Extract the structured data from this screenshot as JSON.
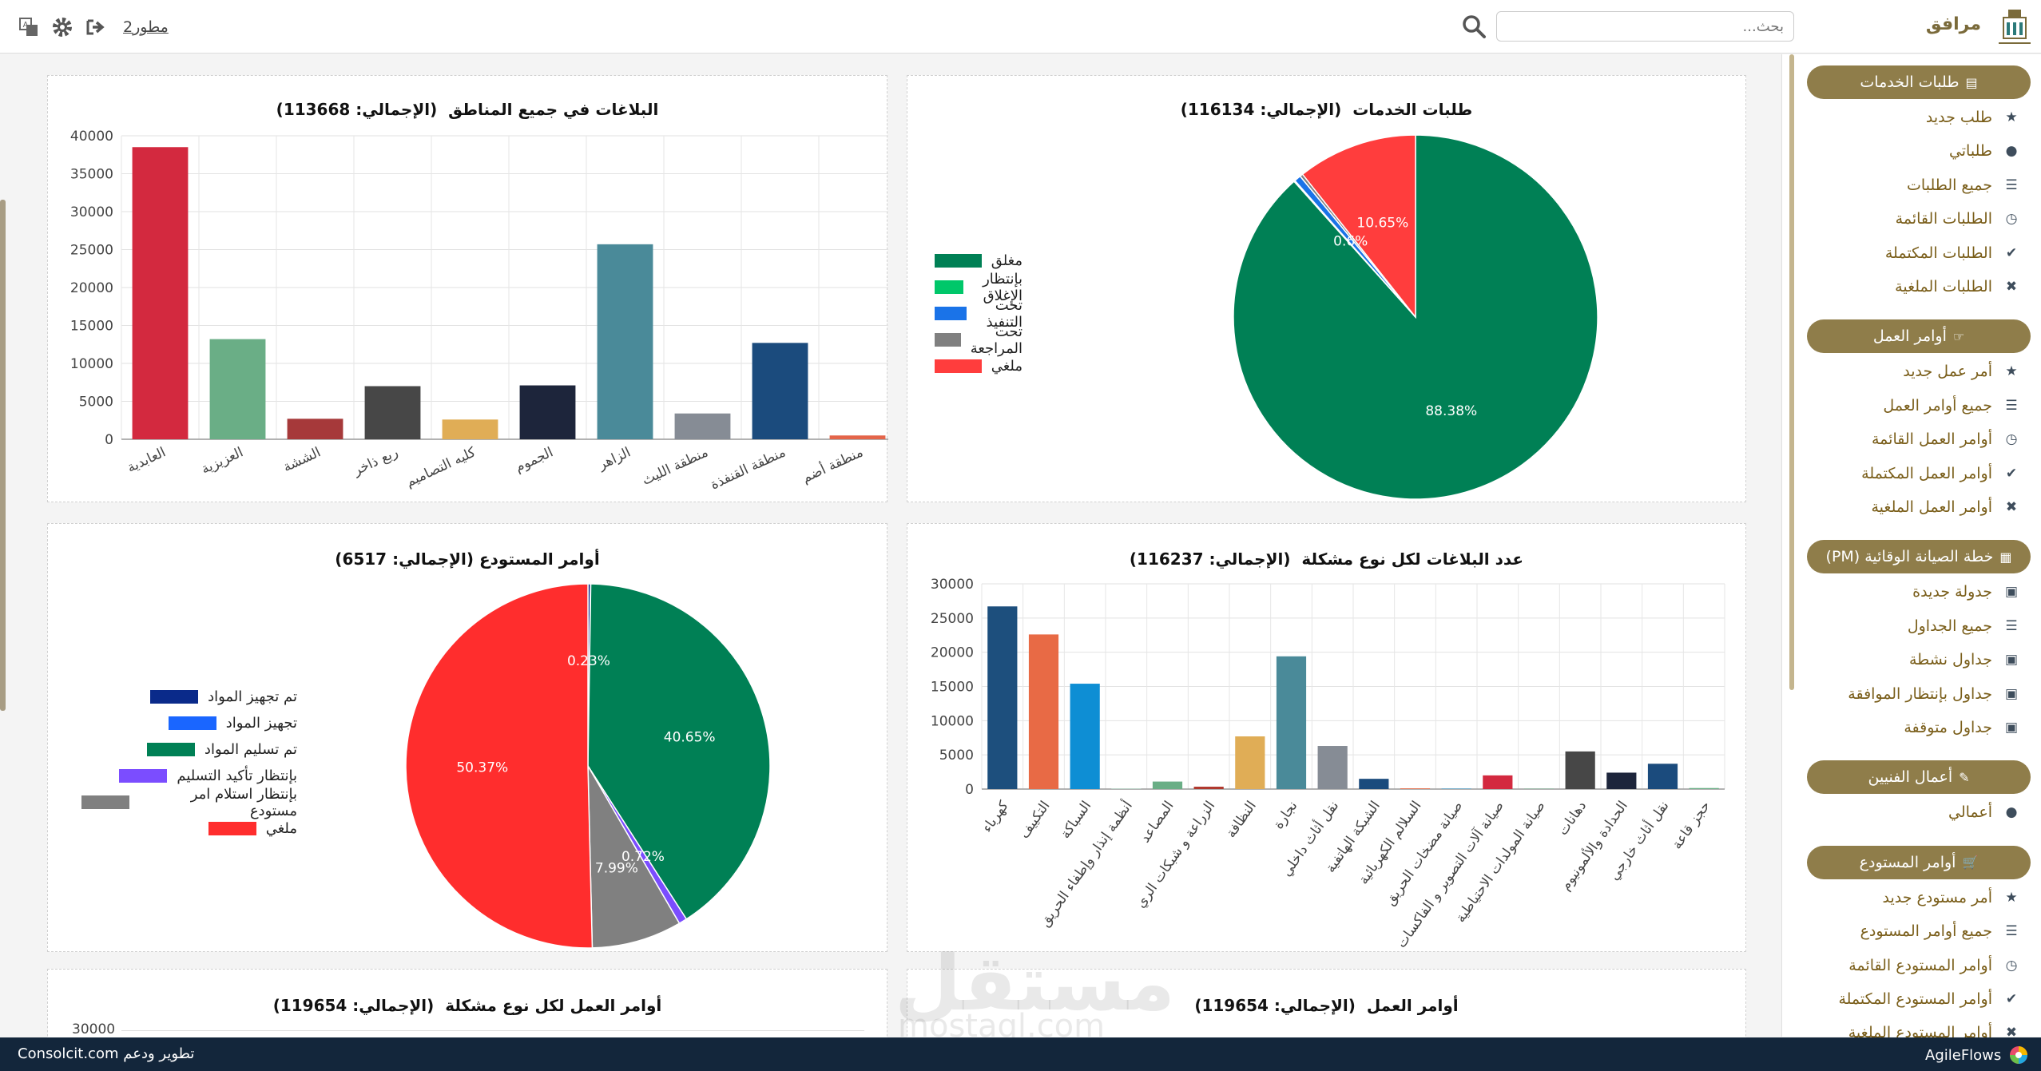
{
  "header": {
    "brand": "مرافق",
    "search_placeholder": "بحث...",
    "user": "مطور2",
    "icons": [
      "translate-icon",
      "gear-icon",
      "logout-icon"
    ]
  },
  "sidebar": {
    "sections": [
      {
        "title": "طلبات الخدمات",
        "icon": "form-icon",
        "items": [
          {
            "label": "طلب جديد",
            "icon": "star-icon"
          },
          {
            "label": "طلباتي",
            "icon": "user-icon"
          },
          {
            "label": "جميع الطلبات",
            "icon": "list-icon"
          },
          {
            "label": "الطلبات القائمة",
            "icon": "clock-icon"
          },
          {
            "label": "الطلبات المكتملة",
            "icon": "check-icon"
          },
          {
            "label": "الطلبات الملغية",
            "icon": "x-icon"
          }
        ]
      },
      {
        "title": "أوامر العمل",
        "icon": "hand-point-icon",
        "items": [
          {
            "label": "أمر عمل جديد",
            "icon": "star-icon"
          },
          {
            "label": "جميع أوامر العمل",
            "icon": "list-icon"
          },
          {
            "label": "أوامر العمل القائمة",
            "icon": "clock-icon"
          },
          {
            "label": "أوامر العمل المكتملة",
            "icon": "check-icon"
          },
          {
            "label": "أوامر العمل الملغية",
            "icon": "x-icon"
          }
        ]
      },
      {
        "title": "خطة الصيانة الوقائية (PM)",
        "icon": "calendar-icon",
        "items": [
          {
            "label": "جدولة جديدة",
            "icon": "calendar-plus-icon"
          },
          {
            "label": "جميع الجداول",
            "icon": "list-icon"
          },
          {
            "label": "جداول نشطة",
            "icon": "calendar-check-icon"
          },
          {
            "label": "جداول بإنتظار الموافقة",
            "icon": "calendar-clock-icon"
          },
          {
            "label": "جداول متوقفة",
            "icon": "calendar-x-icon"
          }
        ]
      },
      {
        "title": "أعمال الفنيين",
        "icon": "wrench-icon",
        "items": [
          {
            "label": "أعمالي",
            "icon": "user-icon"
          }
        ]
      },
      {
        "title": "أوامر المستودع",
        "icon": "cart-icon",
        "items": [
          {
            "label": "أمر مستودع جديد",
            "icon": "star-icon"
          },
          {
            "label": "جميع أوامر المستودع",
            "icon": "list-icon"
          },
          {
            "label": "أوامر المستودع القائمة",
            "icon": "clock-icon"
          },
          {
            "label": "أوامر المستودع المكتملة",
            "icon": "check-icon"
          },
          {
            "label": "أوامر المستودع الملغية",
            "icon": "x-icon"
          }
        ]
      }
    ]
  },
  "chart_data": [
    {
      "type": "pie",
      "title": "طلبات الخدمات  (الإجمالي: 116134)",
      "labels": [
        "مغلق",
        "بإنتظار الإغلاق",
        "تحت التنفيذ",
        "تحت المراجعة",
        "ملغي"
      ],
      "values": [
        88.38,
        0.1,
        0.6,
        0.27,
        10.65
      ],
      "slice_labels": [
        "88.38%",
        "",
        "0.6%",
        "",
        "10.65%"
      ],
      "colors": [
        "#008055",
        "#00c76a",
        "#1a73e8",
        "#808080",
        "#ff3d3d"
      ],
      "legend": "left"
    },
    {
      "type": "bar",
      "title": "البلاغات في جميع المناطق  (الإجمالي: 113668)",
      "categories": [
        "العابدية",
        "العزيزية",
        "الششة",
        "ربع ذاخر",
        "كليه التصاميم",
        "الجموم",
        "الزاهر",
        "منطقة الليث",
        "منطقة القنفذة",
        "منطقة أضم"
      ],
      "values": [
        38500,
        13200,
        2700,
        7000,
        2600,
        7100,
        25700,
        3400,
        12700,
        500
      ],
      "colors": [
        "#d3293f",
        "#6aae86",
        "#a6393a",
        "#474747",
        "#e0ad56",
        "#1d253b",
        "#4a8a99",
        "#868c95",
        "#1b4b7d",
        "#e4654a"
      ],
      "ylim": [
        0,
        40000
      ],
      "yticks": [
        0,
        5000,
        10000,
        15000,
        20000,
        25000,
        30000,
        35000,
        40000
      ]
    },
    {
      "type": "bar",
      "title": "عدد البلاغات لكل نوع مشكلة  (الإجمالي: 116237)",
      "categories": [
        "كهرباء",
        "التكييف",
        "السباكة",
        "أنظمة إنذار وإطفاء الحريق",
        "المصاعد",
        "الزراعة و شبكات الري",
        "النظافة",
        "نجارة",
        "نقل أثاث داخلي",
        "الشبكة الهاتفية",
        "السلالم الكهربائية",
        "صيانة مضخات الحريق",
        "صيانة آلات التصوير و الفاكسات",
        "صيانة المولدات الاحتياطية",
        "دهانات",
        "الحدادة والألمونيوم",
        "نقل أثاث خارجي",
        "حجز قاعة"
      ],
      "values": [
        26700,
        22600,
        15400,
        100,
        1100,
        350,
        7700,
        19400,
        6300,
        1500,
        100,
        50,
        2000,
        50,
        5500,
        2400,
        3700,
        150
      ],
      "colors": [
        "#1d4f7d",
        "#e86a45",
        "#0e8ed4",
        "#b8d4c8",
        "#6aae86",
        "#b0392e",
        "#e0ad56",
        "#4a8a99",
        "#868c95",
        "#1b4b7d",
        "#e86a45",
        "#0e8ed4",
        "#d3293f",
        "#6aae86",
        "#474747",
        "#1d253b",
        "#1b4b7d",
        "#6aae86"
      ],
      "ylim": [
        0,
        30000
      ],
      "yticks": [
        0,
        5000,
        10000,
        15000,
        20000,
        25000,
        30000
      ]
    },
    {
      "type": "pie",
      "title": "أوامر المستودع (الإجمالي: 6517)",
      "labels": [
        "تم تجهيز المواد",
        "تجهيز المواد",
        "تم تسليم المواد",
        "بإنتظار تأكيد التسليم",
        "بإنتظار استلام امر مستودع",
        "ملغي"
      ],
      "values": [
        0.23,
        0.02,
        40.65,
        0.72,
        7.99,
        50.37
      ],
      "slice_labels": [
        "0.23%",
        "",
        "40.65%",
        "0.72%",
        "7.99%",
        "50.37%"
      ],
      "colors": [
        "#0a2a8a",
        "#1a66ff",
        "#008055",
        "#7b4dff",
        "#808080",
        "#ff2d2d"
      ],
      "legend": "left"
    },
    {
      "type": "pie",
      "title": "أوامر العمل  (الإجمالي: 119654)"
    },
    {
      "type": "bar",
      "title": "أوامر العمل لكل نوع مشكلة  (الإجمالي: 119654)",
      "yticks": [
        30000
      ]
    }
  ],
  "footer": {
    "left": "تطوير ودعم Consolcit.com",
    "right": "AgileFlows"
  },
  "watermark": {
    "text": "مستقل",
    "sub": "mostaql.com"
  }
}
